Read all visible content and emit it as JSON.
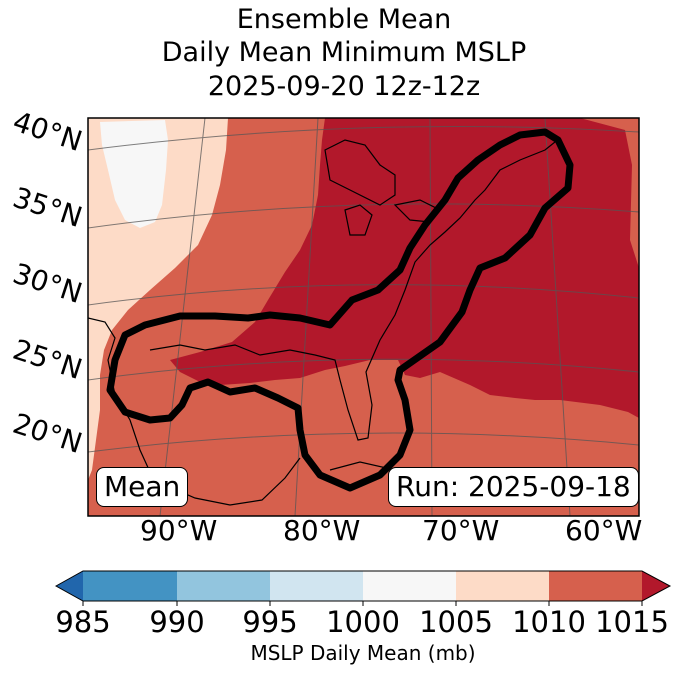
{
  "title": {
    "line1": "Ensemble Mean",
    "line2": "Daily Mean Minimum MSLP",
    "line3": "2025-09-20 12z-12z"
  },
  "lat_labels": [
    "40°N",
    "35°N",
    "30°N",
    "25°N",
    "20°N"
  ],
  "lon_labels": [
    "90°W",
    "80°W",
    "70°W",
    "60°W"
  ],
  "mean_label": "Mean",
  "run_label": "Run: 2025-09-18",
  "colorbar": {
    "ticks": [
      "985",
      "990",
      "995",
      "1000",
      "1005",
      "1010",
      "1015"
    ],
    "label": "MSLP Daily Mean (mb)",
    "colors": [
      "#2166ac",
      "#4393c3",
      "#92c5de",
      "#d1e5f0",
      "#f7f7f7",
      "#fddbc7",
      "#d6604d",
      "#b2182b"
    ]
  }
}
